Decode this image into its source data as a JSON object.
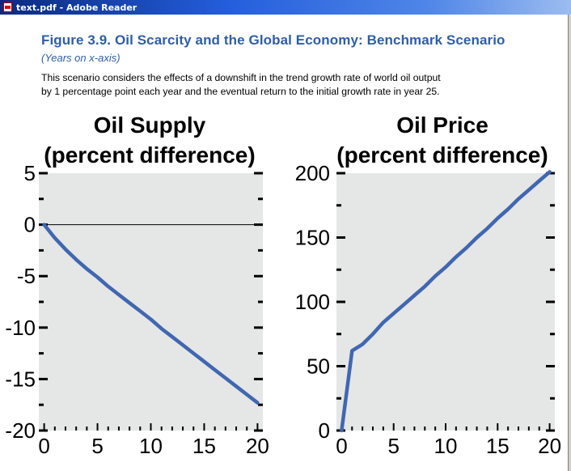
{
  "window": {
    "title": "text.pdf - Adobe Reader",
    "icon": "pdf-document-icon"
  },
  "figure": {
    "title": "Figure 3.9.  Oil Scarcity and the Global Economy: Benchmark Scenario",
    "subtitle": "(Years on x-axis)",
    "description_lines": [
      "This scenario considers the effects of a downshift in the trend growth rate of world oil output",
      "by 1 percentage point each year and the eventual return to the initial growth rate in year 25."
    ]
  },
  "colors": {
    "heading": "#2e5fa4",
    "plot_background": "#e5e6e6",
    "series_line": "#4067b0",
    "title_bar": "#245edc"
  },
  "chart_data": [
    {
      "type": "line",
      "title_lines": [
        "Oil Supply",
        "(percent difference)"
      ],
      "x": [
        0,
        1,
        2,
        3,
        4,
        5,
        6,
        7,
        8,
        9,
        10,
        11,
        12,
        13,
        14,
        15,
        16,
        17,
        18,
        19,
        20
      ],
      "series": [
        {
          "values": [
            0,
            -1.3,
            -2.4,
            -3.4,
            -4.3,
            -5.1,
            -6.0,
            -6.8,
            -7.6,
            -8.4,
            -9.2,
            -10.1,
            -10.9,
            -11.7,
            -12.5,
            -13.3,
            -14.1,
            -14.9,
            -15.7,
            -16.5,
            -17.3
          ]
        }
      ],
      "xlim": [
        -0.5,
        20.5
      ],
      "ylim": [
        -20,
        5
      ],
      "x_ticks": [
        0,
        5,
        10,
        15,
        20
      ],
      "y_ticks": [
        5,
        0,
        -5,
        -10,
        -15,
        -20
      ],
      "x_tick_labels": [
        "0",
        "5",
        "10",
        "15",
        "20"
      ],
      "y_tick_labels": [
        "5",
        "0",
        "-5",
        "-10",
        "-15",
        "-20"
      ],
      "zero_line": true,
      "grid": false,
      "legend": "none"
    },
    {
      "type": "line",
      "title_lines": [
        "Oil Price",
        "(percent difference)"
      ],
      "x": [
        0,
        1,
        2,
        3,
        4,
        5,
        6,
        7,
        8,
        9,
        10,
        11,
        12,
        13,
        14,
        15,
        16,
        17,
        18,
        19,
        20
      ],
      "series": [
        {
          "values": [
            0,
            62,
            67,
            75,
            84,
            91,
            98,
            105,
            112,
            120,
            127,
            135,
            142,
            150,
            157,
            165,
            172,
            180,
            187,
            194,
            201
          ]
        }
      ],
      "xlim": [
        -0.5,
        20.5
      ],
      "ylim": [
        0,
        200
      ],
      "x_ticks": [
        0,
        5,
        10,
        15,
        20
      ],
      "y_ticks": [
        200,
        150,
        100,
        50,
        0
      ],
      "x_tick_labels": [
        "0",
        "5",
        "10",
        "15",
        "20"
      ],
      "y_tick_labels": [
        "200",
        "150",
        "100",
        "50",
        "0"
      ],
      "zero_line": false,
      "grid": false,
      "legend": "none"
    }
  ]
}
